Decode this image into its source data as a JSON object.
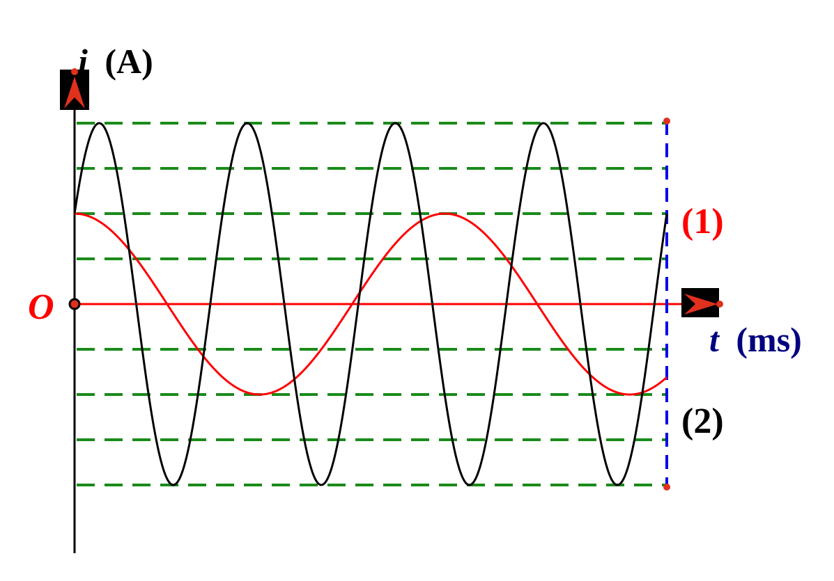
{
  "chart_data": {
    "type": "line",
    "title": "",
    "ylabel": {
      "symbol": "i",
      "unit": "(A)"
    },
    "xlabel": {
      "symbol": "t",
      "unit": "(ms)"
    },
    "origin_label": "O",
    "ylim": [
      -4,
      4
    ],
    "xlim": [
      0,
      1.6
    ],
    "grid": "horizontal dashed",
    "series": [
      {
        "name": "(1)",
        "color": "#ff0000",
        "amplitude": 2,
        "period": 1,
        "phase": "cos",
        "x_end": 1.6
      },
      {
        "name": "(2)",
        "color": "#000000",
        "amplitude": 4,
        "period": 0.4,
        "phase": "sin(ωt+π/6)",
        "x_end": 1.6
      }
    ]
  },
  "colors": {
    "axis_vertical": "#000000",
    "axis_horizontal": "#ff0000",
    "grid": "#1a8a1a",
    "boundary": "#0000ee",
    "arrow": "#e0301e",
    "arrow_box": "#000000",
    "xlabel": "#00007f"
  }
}
